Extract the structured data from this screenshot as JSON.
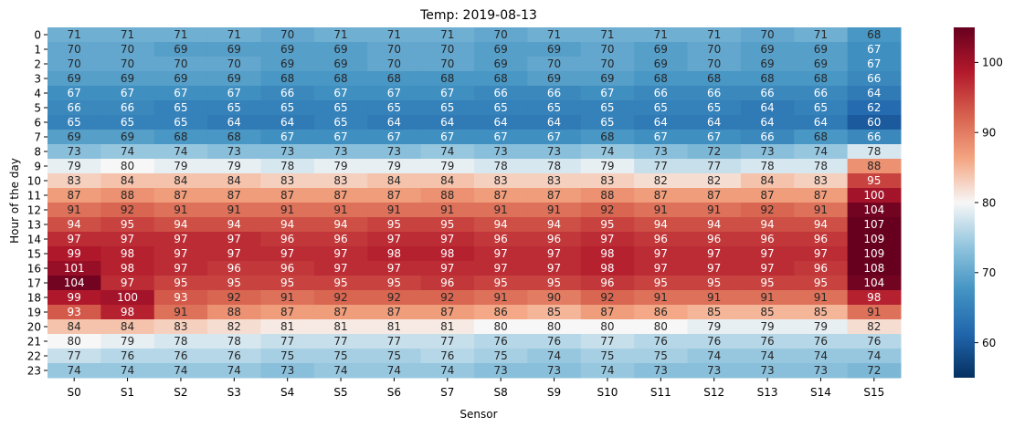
{
  "chart_data": {
    "type": "heatmap",
    "title": "Temp: 2019-08-13",
    "xlabel": "Sensor",
    "ylabel": "Hour of the day",
    "x_categories": [
      "S0",
      "S1",
      "S2",
      "S3",
      "S4",
      "S5",
      "S6",
      "S7",
      "S8",
      "S9",
      "S10",
      "S11",
      "S12",
      "S13",
      "S14",
      "S15"
    ],
    "y_categories": [
      "0",
      "1",
      "2",
      "3",
      "4",
      "5",
      "6",
      "7",
      "8",
      "9",
      "10",
      "11",
      "12",
      "13",
      "14",
      "15",
      "16",
      "17",
      "18",
      "19",
      "20",
      "21",
      "22",
      "23"
    ],
    "values": [
      [
        71,
        71,
        71,
        71,
        70,
        71,
        71,
        71,
        70,
        71,
        71,
        71,
        71,
        70,
        71,
        68
      ],
      [
        70,
        70,
        69,
        69,
        69,
        69,
        70,
        70,
        69,
        69,
        70,
        69,
        70,
        69,
        69,
        67
      ],
      [
        70,
        70,
        70,
        70,
        69,
        69,
        70,
        70,
        69,
        70,
        70,
        69,
        70,
        69,
        69,
        67
      ],
      [
        69,
        69,
        69,
        69,
        68,
        68,
        68,
        68,
        68,
        69,
        69,
        68,
        68,
        68,
        68,
        66
      ],
      [
        67,
        67,
        67,
        67,
        66,
        67,
        67,
        67,
        66,
        66,
        67,
        66,
        66,
        66,
        66,
        64
      ],
      [
        66,
        66,
        65,
        65,
        65,
        65,
        65,
        65,
        65,
        65,
        65,
        65,
        65,
        64,
        65,
        62
      ],
      [
        65,
        65,
        65,
        64,
        64,
        65,
        64,
        64,
        64,
        64,
        65,
        64,
        64,
        64,
        64,
        60
      ],
      [
        69,
        69,
        68,
        68,
        67,
        67,
        67,
        67,
        67,
        67,
        68,
        67,
        67,
        66,
        68,
        66
      ],
      [
        73,
        74,
        74,
        73,
        73,
        73,
        73,
        74,
        73,
        73,
        74,
        73,
        72,
        73,
        74,
        78
      ],
      [
        79,
        80,
        79,
        79,
        78,
        79,
        79,
        79,
        78,
        78,
        79,
        77,
        77,
        78,
        78,
        88
      ],
      [
        83,
        84,
        84,
        84,
        83,
        83,
        84,
        84,
        83,
        83,
        83,
        82,
        82,
        84,
        83,
        95
      ],
      [
        87,
        88,
        87,
        87,
        87,
        87,
        87,
        88,
        87,
        87,
        88,
        87,
        87,
        87,
        87,
        100
      ],
      [
        91,
        92,
        91,
        91,
        91,
        91,
        91,
        91,
        91,
        91,
        92,
        91,
        91,
        92,
        91,
        104
      ],
      [
        94,
        95,
        94,
        94,
        94,
        94,
        95,
        95,
        94,
        94,
        95,
        94,
        94,
        94,
        94,
        107
      ],
      [
        97,
        97,
        97,
        97,
        96,
        96,
        97,
        97,
        96,
        96,
        97,
        96,
        96,
        96,
        96,
        109
      ],
      [
        99,
        98,
        97,
        97,
        97,
        97,
        98,
        98,
        97,
        97,
        98,
        97,
        97,
        97,
        97,
        109
      ],
      [
        101,
        98,
        97,
        96,
        96,
        97,
        97,
        97,
        97,
        97,
        98,
        97,
        97,
        97,
        96,
        108
      ],
      [
        104,
        97,
        95,
        95,
        95,
        95,
        95,
        96,
        95,
        95,
        96,
        95,
        95,
        95,
        95,
        104
      ],
      [
        99,
        100,
        93,
        92,
        91,
        92,
        92,
        92,
        91,
        90,
        92,
        91,
        91,
        91,
        91,
        98
      ],
      [
        93,
        98,
        91,
        88,
        87,
        87,
        87,
        87,
        86,
        85,
        87,
        86,
        85,
        85,
        85,
        91
      ],
      [
        84,
        84,
        83,
        82,
        81,
        81,
        81,
        81,
        80,
        80,
        80,
        80,
        79,
        79,
        79,
        82
      ],
      [
        80,
        79,
        78,
        78,
        77,
        77,
        77,
        77,
        76,
        76,
        77,
        76,
        76,
        76,
        76,
        76
      ],
      [
        77,
        76,
        76,
        76,
        75,
        75,
        75,
        76,
        75,
        74,
        75,
        75,
        74,
        74,
        74,
        74
      ],
      [
        74,
        74,
        74,
        74,
        73,
        74,
        74,
        74,
        73,
        73,
        74,
        73,
        73,
        73,
        73,
        72
      ]
    ],
    "colorscale": "RdBu_r",
    "colorbar": {
      "vmin": 55,
      "vmax": 105,
      "ticks": [
        60,
        70,
        80,
        90,
        100
      ]
    }
  }
}
